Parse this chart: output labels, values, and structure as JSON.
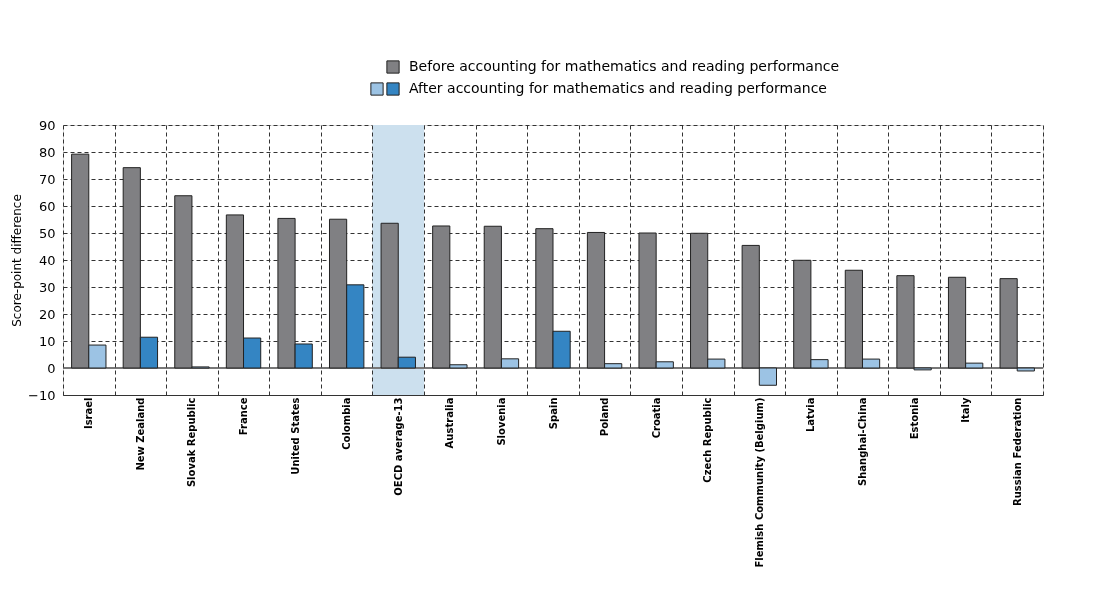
{
  "chart_data": {
    "type": "bar",
    "ylabel": "Score-point difference",
    "categories": [
      "Israel",
      "New Zealand",
      "Slovak Republic",
      "France",
      "United States",
      "Colombia",
      "OECD average-13",
      "Australia",
      "Slovenia",
      "Spain",
      "Poland",
      "Croatia",
      "Czech Republic",
      "Flemish Community (Belgium)",
      "Latvia",
      "Shanghai-China",
      "Estonia",
      "Italy",
      "Russian Federation"
    ],
    "series": [
      {
        "name": "Before accounting for mathematics and reading performance",
        "color": "#808083",
        "values": [
          79.2,
          74.2,
          63.8,
          56.7,
          55.4,
          55.1,
          53.6,
          52.6,
          52.5,
          51.6,
          50.2,
          50.0,
          49.9,
          45.4,
          39.9,
          36.2,
          34.2,
          33.6,
          33.1
        ]
      },
      {
        "name": "After accounting for mathematics and reading performance",
        "color": "#9cc3e4",
        "colors": [
          "#9cc3e4",
          "#3485c3",
          "#9cc3e4",
          "#3485c3",
          "#3485c3",
          "#3485c3",
          "#3485c3",
          "#9cc3e4",
          "#9cc3e4",
          "#3485c3",
          "#9cc3e4",
          "#9cc3e4",
          "#9cc3e4",
          "#9cc3e4",
          "#9cc3e4",
          "#9cc3e4",
          "#9cc3e4",
          "#9cc3e4",
          "#9cc3e4"
        ],
        "values": [
          8.5,
          11.4,
          0.4,
          11.1,
          8.9,
          30.8,
          4.0,
          1.2,
          3.4,
          13.6,
          1.6,
          2.3,
          3.3,
          -6.4,
          3.1,
          3.3,
          -0.7,
          1.8,
          -1.1
        ]
      }
    ],
    "ylim": [
      -10,
      90
    ],
    "yticks": [
      -10,
      0,
      10,
      20,
      30,
      40,
      50,
      60,
      70,
      80,
      90
    ],
    "bands": [
      {
        "axis": "x",
        "from": "OECD average-13",
        "to": "OECD average-13",
        "color": "#cce0ee"
      }
    ],
    "grid": true,
    "legend": "top"
  }
}
